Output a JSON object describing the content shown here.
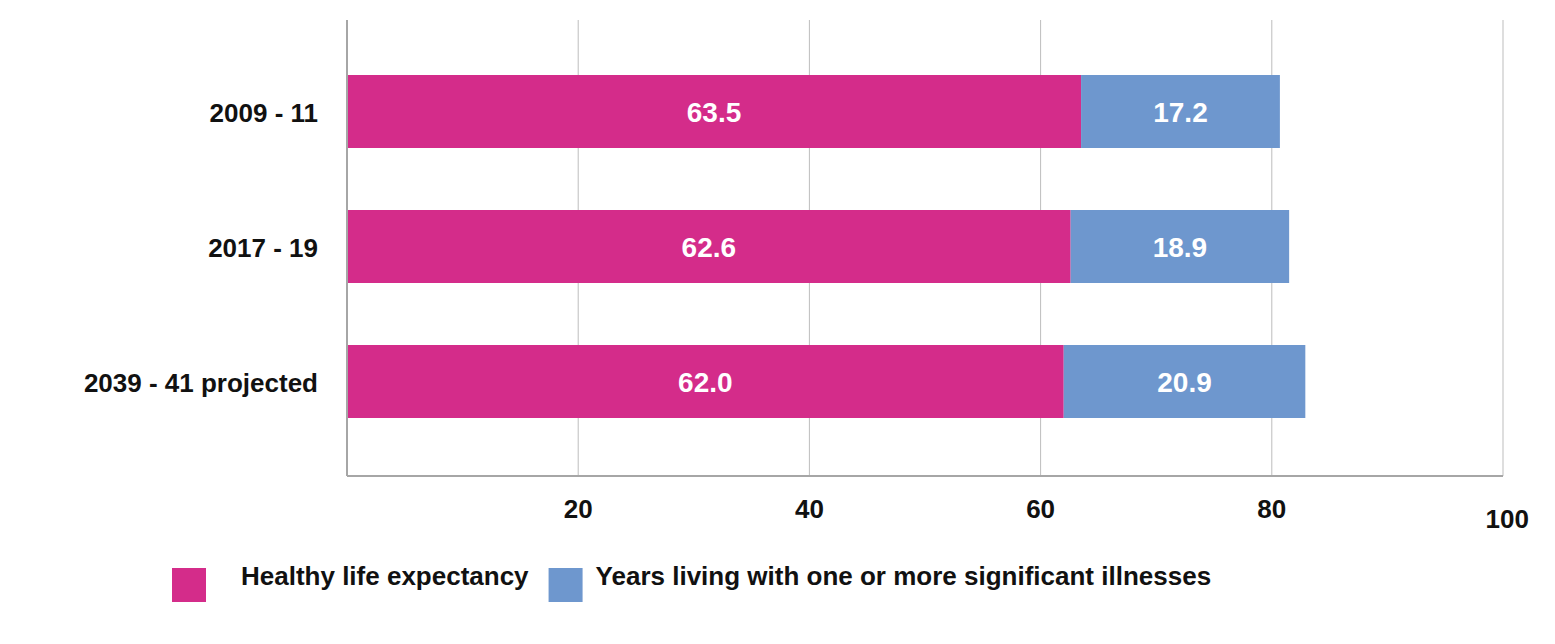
{
  "chart_data": {
    "type": "bar",
    "orientation": "horizontal",
    "stacked": true,
    "data_labels": true,
    "grid": true,
    "legend": "bottom",
    "categories": [
      "2009 - 11",
      "2017 - 19",
      "2039 - 41 projected"
    ],
    "series": [
      {
        "name": "Healthy life expectancy",
        "color": "#d42c8a",
        "values": [
          63.5,
          62.6,
          62.0
        ],
        "value_labels": [
          "63.5",
          "62.6",
          "62.0"
        ]
      },
      {
        "name": "Years living with one or more significant illnesses",
        "color": "#6e97ce",
        "values": [
          17.2,
          18.9,
          20.9
        ]
      }
    ],
    "xlim": [
      0,
      100
    ],
    "xticks": [
      20,
      40,
      60,
      80,
      100
    ]
  }
}
